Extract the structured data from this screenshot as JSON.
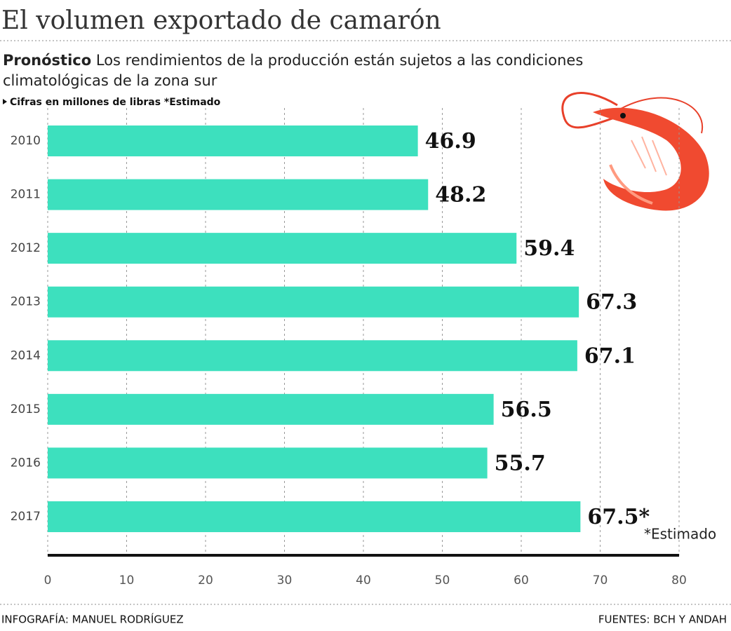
{
  "chart_data": {
    "type": "bar",
    "orientation": "horizontal",
    "title": "El volumen exportado de camarón",
    "subtitle_lead": "Pronóstico",
    "subtitle": "Los rendimientos de la producción están sujetos a las condiciones climatológicas de la zona sur",
    "note": "Cifras en millones de libras *Estimado",
    "annotation": "*Estimado",
    "credit_left": "INFOGRAFÍA: MANUEL RODRÍGUEZ",
    "credit_right": "FUENTES: BCH Y ANDAH",
    "categories": [
      "2010",
      "2011",
      "2012",
      "2013",
      "2014",
      "2015",
      "2016",
      "2017"
    ],
    "values": [
      46.9,
      48.2,
      59.4,
      67.3,
      67.1,
      56.5,
      55.7,
      67.5
    ],
    "value_labels": [
      "46.9",
      "48.2",
      "59.4",
      "67.3",
      "67.1",
      "56.5",
      "55.7",
      "67.5*"
    ],
    "color": "#3de0be",
    "xlim": [
      0,
      80
    ],
    "xticks": [
      0,
      10,
      20,
      30,
      40,
      50,
      60,
      70,
      80
    ],
    "grid": true
  }
}
